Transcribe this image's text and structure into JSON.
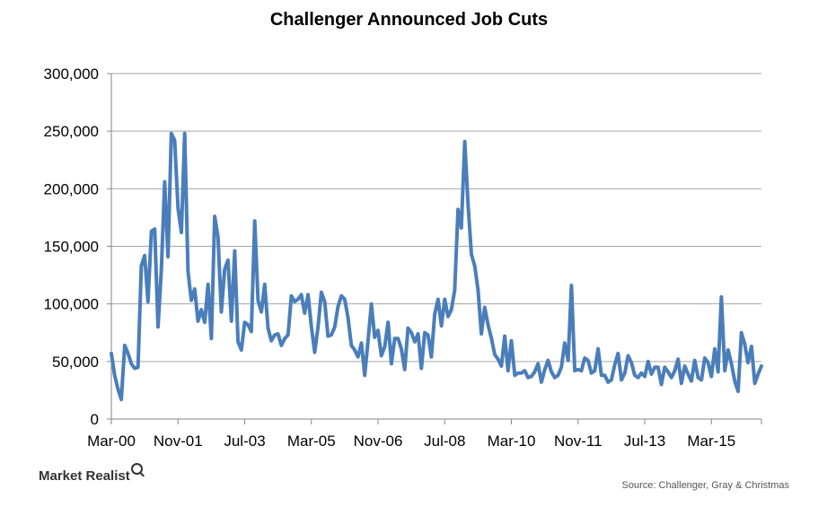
{
  "chart_data": {
    "type": "line",
    "title": "Challenger Announced Job Cuts",
    "xlabel": "",
    "ylabel": "",
    "ylim": [
      0,
      300000
    ],
    "yticks": [
      "0",
      "50,000",
      "100,000",
      "150,000",
      "200,000",
      "250,000",
      "300,000"
    ],
    "xticks": [
      "Mar-00",
      "Nov-01",
      "Jul-03",
      "Mar-05",
      "Nov-06",
      "Jul-08",
      "Mar-10",
      "Nov-11",
      "Jul-13",
      "Mar-15"
    ],
    "x_start": "Mar-00",
    "x_end": "Nov-16",
    "grid": "horizontal",
    "legend": "none",
    "series": [
      {
        "color": "#4a7ebb",
        "values": [
          57000,
          38000,
          26000,
          17000,
          64000,
          57000,
          48000,
          44000,
          45000,
          133000,
          142000,
          102000,
          163000,
          165000,
          80000,
          130000,
          206000,
          141000,
          248000,
          242000,
          183000,
          162000,
          248000,
          128000,
          103000,
          113000,
          85000,
          95000,
          84000,
          117000,
          70000,
          176000,
          158000,
          93000,
          130000,
          138000,
          85000,
          146000,
          67000,
          60000,
          84000,
          82000,
          76000,
          172000,
          103000,
          93000,
          117000,
          79000,
          68000,
          73000,
          74000,
          64000,
          70000,
          73000,
          107000,
          102000,
          104000,
          108000,
          92000,
          108000,
          80000,
          58000,
          80000,
          110000,
          102000,
          72000,
          73000,
          80000,
          98000,
          107000,
          104000,
          88000,
          64000,
          60000,
          54000,
          66000,
          38000,
          68000,
          100000,
          71000,
          77000,
          55000,
          63000,
          84000,
          48000,
          70000,
          70000,
          61000,
          43000,
          79000,
          75000,
          67000,
          74000,
          44000,
          75000,
          73000,
          54000,
          91000,
          104000,
          81000,
          104000,
          89000,
          95000,
          112000,
          182000,
          166000,
          241000,
          186000,
          143000,
          133000,
          112000,
          74000,
          97000,
          82000,
          70000,
          56000,
          52000,
          46000,
          72000,
          42000,
          68000,
          38000,
          40000,
          40000,
          42000,
          36000,
          37000,
          41000,
          48000,
          32000,
          43000,
          51000,
          41000,
          36000,
          38000,
          45000,
          66000,
          51000,
          116000,
          42000,
          43000,
          42000,
          53000,
          51000,
          40000,
          42000,
          61000,
          38000,
          38000,
          32000,
          34000,
          47000,
          57000,
          34000,
          40000,
          55000,
          49000,
          38000,
          36000,
          40000,
          37000,
          50000,
          39000,
          45000,
          45000,
          30000,
          45000,
          41000,
          36000,
          42000,
          52000,
          31000,
          46000,
          39000,
          33000,
          51000,
          36000,
          34000,
          53000,
          49000,
          37000,
          61000,
          41000,
          106000,
          42000,
          60000,
          48000,
          33000,
          24000,
          75000,
          65000,
          49000,
          63000,
          31000,
          39000,
          46000
        ]
      }
    ]
  },
  "source_text": "Source: Challenger, Gray & Christmas",
  "brand": {
    "name": "Market Realist",
    "icon": "magnifier-icon"
  }
}
